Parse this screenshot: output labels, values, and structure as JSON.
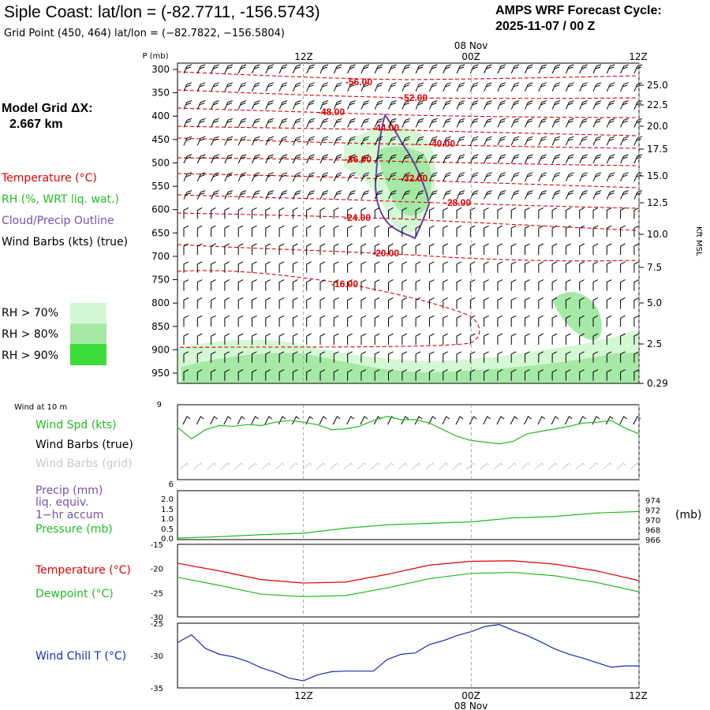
{
  "header": {
    "title": "Siple Coast:  lat/lon = (-82.7711, -156.5743)",
    "subtitle": "Grid Point (450, 464) lat/lon = (−82.7822, −156.5804)",
    "cycle_label": "AMPS WRF Forecast Cycle:",
    "cycle_value": "2025-11-07 / 00  Z"
  },
  "time_axis": {
    "date_label": "08 Nov",
    "ticks": [
      {
        "hour": 12,
        "label": "12Z"
      },
      {
        "hour": 24,
        "label": "00Z"
      },
      {
        "hour": 36,
        "label": "12Z"
      }
    ],
    "range_hours": [
      3,
      36
    ]
  },
  "legend": {
    "model_grid_label": "Model Grid ΔX:",
    "model_grid_value": "2.667 km",
    "temperature": "Temperature (°C)",
    "rh": "RH (%, WRT liq. wat.)",
    "cloud": "Cloud/Precip Outline",
    "wind": "Wind Barbs (kts) (true)",
    "rh70": "RH > 70%",
    "rh80": "RH > 80%",
    "rh90": "RH > 90%",
    "wind10m": "Wind at 10 m",
    "wind_spd": "Wind Spd (kts)",
    "wind_barbs_true": "Wind Barbs (true)",
    "wind_barbs_grid": "Wind Barbs (grid)",
    "precip": "Precip (mm)",
    "liq": "liq. equiv.",
    "accum": "1−hr accum",
    "pressure": "Pressure (mb)",
    "mb_unit": "(mb)",
    "temp2": "Temperature (°C)",
    "dew": "Dewpoint (°C)",
    "chill": "Wind Chill T (°C)"
  },
  "colors": {
    "temperature": "#e00000",
    "rh70": "#d4f8d4",
    "rh80": "#a6e8a6",
    "rh90": "#3add3a",
    "cloud": "#7a50a8",
    "wind": "#000000",
    "wind_grid": "#c8c8c8",
    "green_line": "#22bb22",
    "blue_line": "#1a2ab0",
    "grid": "#999999"
  },
  "chart_data": [
    {
      "type": "contour",
      "name": "cross_section",
      "ylabel_left": "P (mb)",
      "ylabel_right": "Kft MSL",
      "pressure_ticks": [
        300,
        350,
        400,
        450,
        500,
        550,
        600,
        650,
        700,
        750,
        800,
        850,
        900,
        950
      ],
      "height_ticks": [
        "25.0",
        "22.5",
        "20.0",
        "17.5",
        "15.0",
        "12.5",
        "10.0",
        "7.5",
        "5.0",
        "2.5",
        "0.29"
      ],
      "isotherm_labels": [
        "-56.00",
        "-52.00",
        "-48.00",
        "-44.00",
        "-40.00",
        "-36.00",
        "-32.00",
        "-28.00",
        "-24.00",
        "-20.00",
        "-16.00"
      ]
    },
    {
      "type": "line",
      "name": "wind_speed_10m",
      "yticks": [
        9
      ],
      "x": [
        3,
        4,
        5,
        6,
        7,
        8,
        9,
        10,
        11,
        12,
        13,
        14,
        15,
        16,
        17,
        18,
        19,
        20,
        21,
        22,
        23,
        24,
        25,
        26,
        27,
        28,
        29,
        30,
        31,
        32,
        33,
        34,
        35,
        36
      ],
      "y": [
        6.3,
        4.9,
        6.0,
        6.5,
        6.4,
        6.6,
        6.5,
        6.9,
        7.1,
        6.9,
        6.6,
        6.0,
        6.1,
        6.4,
        7.1,
        7.6,
        7.2,
        7.2,
        6.8,
        6.0,
        5.2,
        4.7,
        4.5,
        4.3,
        4.6,
        5.5,
        5.8,
        6.1,
        6.4,
        6.8,
        6.9,
        7.1,
        6.2,
        5.5
      ]
    },
    {
      "type": "line",
      "name": "precip_pressure",
      "precip_ticks": [
        "0.0",
        "0.5",
        "1.0",
        "1.5",
        "2.0",
        "6"
      ],
      "pressure_ticks": [
        966,
        968,
        970,
        972,
        974
      ],
      "x": [
        3,
        6,
        9,
        12,
        15,
        18,
        21,
        24,
        27,
        30,
        33,
        36
      ],
      "pressure": [
        966.3,
        966.6,
        967.0,
        967.3,
        968.3,
        969.0,
        969.3,
        969.6,
        970.4,
        970.7,
        971.4,
        971.7
      ]
    },
    {
      "type": "line",
      "name": "temperature_dewpoint",
      "yticks": [
        -15,
        -20,
        -25,
        -30
      ],
      "x": [
        3,
        6,
        9,
        12,
        15,
        18,
        21,
        24,
        27,
        30,
        33,
        36
      ],
      "temperature": [
        -18.9,
        -20.5,
        -22.3,
        -23.0,
        -22.8,
        -21.2,
        -19.3,
        -18.5,
        -18.4,
        -19.1,
        -20.5,
        -22.5
      ],
      "dewpoint": [
        -21.8,
        -23.5,
        -25.3,
        -25.8,
        -25.6,
        -24.0,
        -22.1,
        -21.0,
        -20.8,
        -21.5,
        -22.9,
        -24.8
      ]
    },
    {
      "type": "line",
      "name": "wind_chill",
      "yticks": [
        -25,
        -30,
        -35
      ],
      "x": [
        3,
        4,
        5,
        6,
        7,
        8,
        9,
        10,
        11,
        12,
        13,
        14,
        15,
        16,
        17,
        18,
        19,
        20,
        21,
        22,
        23,
        24,
        25,
        26,
        27,
        28,
        29,
        30,
        31,
        32,
        33,
        34,
        35,
        36
      ],
      "y": [
        -28.0,
        -26.8,
        -28.9,
        -29.8,
        -30.2,
        -30.9,
        -31.9,
        -32.6,
        -33.5,
        -33.9,
        -33.0,
        -32.5,
        -32.4,
        -32.4,
        -32.4,
        -30.6,
        -29.8,
        -29.6,
        -28.3,
        -27.7,
        -26.9,
        -26.3,
        -25.5,
        -25.2,
        -26.1,
        -26.9,
        -27.9,
        -29.0,
        -29.8,
        -30.4,
        -31.1,
        -31.8,
        -31.6,
        -31.6
      ]
    }
  ]
}
